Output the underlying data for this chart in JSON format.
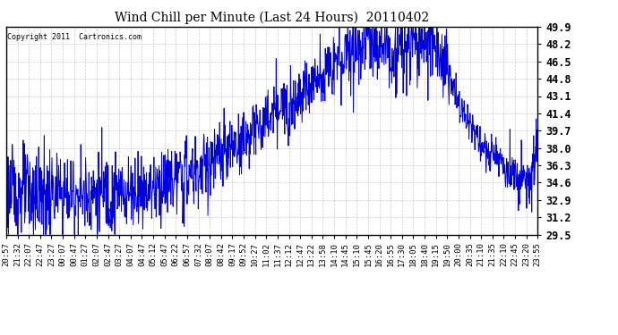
{
  "title": "Wind Chill per Minute (Last 24 Hours)  20110402",
  "copyright": "Copyright 2011  Cartronics.com",
  "line_color": "#0000dd",
  "bg_color": "#ffffff",
  "plot_bg_color": "#ffffff",
  "grid_color": "#aaaaaa",
  "yticks": [
    29.5,
    31.2,
    32.9,
    34.6,
    36.3,
    38.0,
    39.7,
    41.4,
    43.1,
    44.8,
    46.5,
    48.2,
    49.9
  ],
  "ymin": 29.5,
  "ymax": 49.9,
  "xlabel_fontsize": 6.5,
  "ylabel_fontsize": 8.5,
  "title_fontsize": 10,
  "line_width": 0.7,
  "xtick_labels": [
    "20:57",
    "21:32",
    "22:07",
    "22:47",
    "23:27",
    "00:07",
    "00:47",
    "01:27",
    "02:07",
    "02:47",
    "03:27",
    "04:07",
    "04:47",
    "05:12",
    "05:47",
    "06:22",
    "06:57",
    "07:32",
    "08:07",
    "08:42",
    "09:17",
    "09:52",
    "10:27",
    "11:02",
    "11:37",
    "12:12",
    "12:47",
    "13:22",
    "13:58",
    "14:10",
    "14:45",
    "15:10",
    "15:45",
    "16:20",
    "16:55",
    "17:30",
    "18:05",
    "18:40",
    "19:15",
    "19:50",
    "20:00",
    "20:35",
    "21:10",
    "21:35",
    "22:10",
    "22:45",
    "23:20",
    "23:55"
  ]
}
